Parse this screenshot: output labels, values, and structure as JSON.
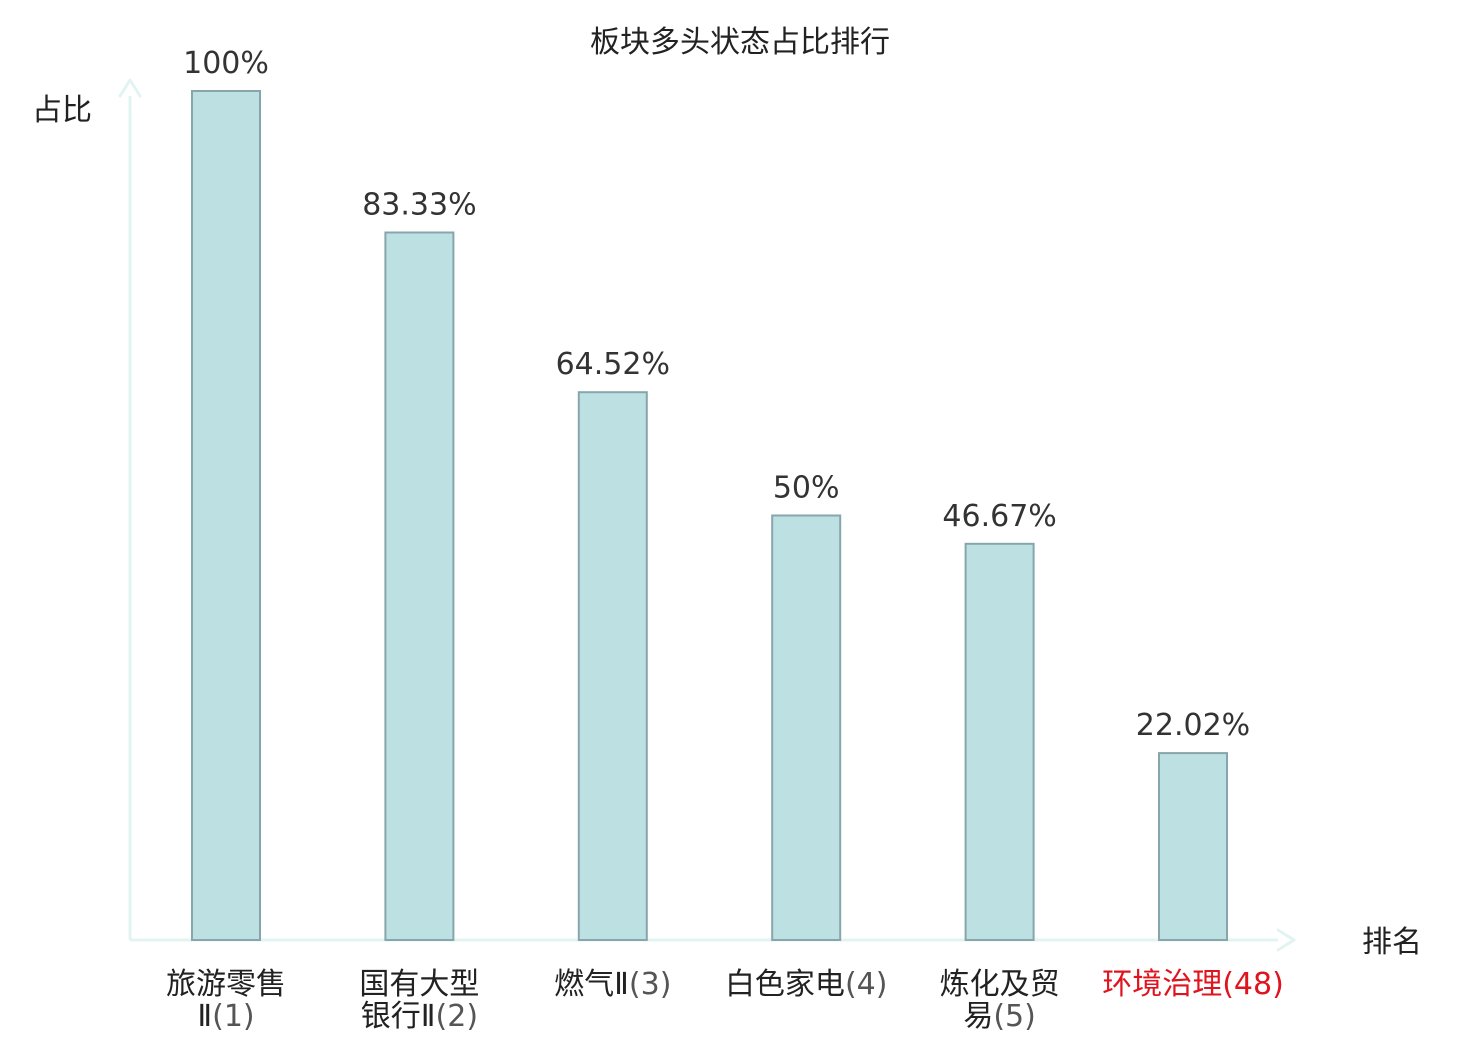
{
  "chart_data": {
    "type": "bar",
    "title": "板块多头状态占比排行",
    "ylabel": "占比",
    "xlabel": "排名",
    "ylim": [
      0,
      100
    ],
    "grid": false,
    "categories": [
      {
        "name_lines": [
          "旅游零售",
          "Ⅱ"
        ],
        "rank": "(1)",
        "full_label": "旅游零售Ⅱ(1)",
        "highlight": false
      },
      {
        "name_lines": [
          "国有大型",
          "银行Ⅱ"
        ],
        "rank": "(2)",
        "full_label": "国有大型银行Ⅱ(2)",
        "highlight": false
      },
      {
        "name_lines": [
          "燃气Ⅱ"
        ],
        "rank": "(3)",
        "full_label": "燃气Ⅱ(3)",
        "highlight": false
      },
      {
        "name_lines": [
          "白色家电"
        ],
        "rank": "(4)",
        "full_label": "白色家电(4)",
        "highlight": false
      },
      {
        "name_lines": [
          "炼化及贸",
          "易"
        ],
        "rank": "(5)",
        "full_label": "炼化及贸易(5)",
        "highlight": false
      },
      {
        "name_lines": [
          "环境治理"
        ],
        "rank": "(48)",
        "full_label": "环境治理(48)",
        "highlight": true
      }
    ],
    "values": [
      100,
      83.33,
      64.52,
      50,
      46.67,
      22.02
    ],
    "value_labels": [
      "100%",
      "83.33%",
      "64.52%",
      "50%",
      "46.67%",
      "22.02%"
    ]
  },
  "colors": {
    "bar_fill": "#bde0e3",
    "bar_stroke": "#86a6ab",
    "axis": "#e2f4f1",
    "text": "#222222",
    "value_text": "#333333",
    "rank_text": "#555555",
    "highlight": "#e0141e"
  }
}
